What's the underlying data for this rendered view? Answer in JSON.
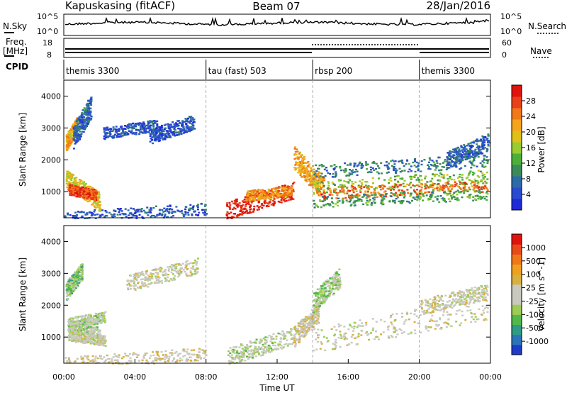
{
  "header": {
    "radar": "Kapuskasing (fitACF)",
    "beam": "Beam 07",
    "date": "28/Jan/2016"
  },
  "panels": {
    "nsky_label": "N.Sky",
    "nsearch_label": "N.Search",
    "freq_label_line1": "Freq.",
    "freq_label_line2": "[MHz]",
    "nave_label": "Nave",
    "cpid_label": "CPID",
    "left_top_tick_top": "10^5",
    "left_top_tick_bottom": "10^0",
    "right_top_tick_top": "10^5",
    "right_top_tick_bottom": "10^0",
    "freq_tick_top": "18",
    "freq_tick_bottom": "8",
    "nave_tick_top": "60",
    "nave_tick_bottom": "0"
  },
  "cpid_segments": [
    {
      "label": "themis 3300",
      "start_h": 0,
      "end_h": 8
    },
    {
      "label": "tau (fast) 503",
      "start_h": 8,
      "end_h": 14
    },
    {
      "label": "rbsp 200",
      "start_h": 14,
      "end_h": 20
    },
    {
      "label": "themis 3300",
      "start_h": 20,
      "end_h": 24
    }
  ],
  "power_colorbar": {
    "label": "Power [dB]",
    "ticks": [
      "4",
      "8",
      "12",
      "16",
      "20",
      "24",
      "28"
    ],
    "colors": [
      "#1f2bd6",
      "#2a4ad0",
      "#2d6aa8",
      "#3a8a5a",
      "#4caf3a",
      "#9acb2f",
      "#e0c018",
      "#f5a41c",
      "#f07818",
      "#e8401a",
      "#e0140c"
    ]
  },
  "velocity_colorbar": {
    "label": "Velocity [m s^-1]",
    "ticks": [
      "1000",
      "500",
      "100",
      "25",
      "-25",
      "-100",
      "-500",
      "-1000"
    ],
    "colors": [
      "#1e3cc8",
      "#2c74b8",
      "#2f9a86",
      "#52b84a",
      "#9ccc55",
      "#c9c9c0",
      "#c9c9c0",
      "#d8b040",
      "#f0a020",
      "#f07818",
      "#e84a1a",
      "#e0140c"
    ]
  },
  "chart_data": {
    "type": "heatmap",
    "title": "Kapuskasing (fitACF)  Beam 07  28/Jan/2016",
    "xlabel": "Time UT",
    "ylabel": "Slant Range [km]",
    "x_ticks": [
      "00:00",
      "04:00",
      "08:00",
      "12:00",
      "16:00",
      "20:00",
      "00:00"
    ],
    "y_ticks": [
      "1000",
      "2000",
      "3000",
      "4000"
    ],
    "xlim_hours": [
      0,
      24
    ],
    "ylim_km": [
      180,
      4500
    ],
    "panels": [
      {
        "name": "Power",
        "units": "dB",
        "range": [
          0,
          30
        ],
        "blobs": [
          {
            "t0": 0.1,
            "t1": 0.7,
            "r0": 2550,
            "r1": 3100,
            "v": 20
          },
          {
            "t0": 0.5,
            "t1": 1.5,
            "r0": 2700,
            "r1": 3700,
            "v": 6
          },
          {
            "t0": 0.1,
            "t1": 2.0,
            "r0": 1400,
            "r1": 700,
            "v": 18
          },
          {
            "t0": 0.2,
            "t1": 1.8,
            "r0": 1100,
            "r1": 900,
            "v": 26
          },
          {
            "t0": 4.8,
            "t1": 7.3,
            "r0": 2750,
            "r1": 3200,
            "v": 5
          },
          {
            "t0": 2.2,
            "t1": 5.2,
            "r0": 2850,
            "r1": 3100,
            "v": 5
          },
          {
            "t0": 9.1,
            "t1": 12.9,
            "r0": 420,
            "r1": 1050,
            "v": 28
          },
          {
            "t0": 10.2,
            "t1": 12.8,
            "r0": 880,
            "r1": 1050,
            "v": 22
          },
          {
            "t0": 12.9,
            "t1": 14.6,
            "r0": 2100,
            "r1": 1100,
            "v": 20
          },
          {
            "t0": 14.0,
            "t1": 23.8,
            "r0": 1650,
            "r1": 2000,
            "v": 8
          },
          {
            "t0": 14.0,
            "t1": 23.8,
            "r0": 1150,
            "r1": 1500,
            "v": 14
          },
          {
            "t0": 14.2,
            "t1": 23.8,
            "r0": 950,
            "r1": 1200,
            "v": 24
          },
          {
            "t0": 14.0,
            "t1": 23.8,
            "r0": 700,
            "r1": 950,
            "v": 11
          },
          {
            "t0": 21.5,
            "t1": 23.9,
            "r0": 2000,
            "r1": 2600,
            "v": 6
          },
          {
            "t0": 0.0,
            "t1": 8.0,
            "r0": 200,
            "r1": 480,
            "v": 5
          }
        ]
      },
      {
        "name": "Velocity",
        "units": "m s^-1",
        "range": [
          -1000,
          1000
        ],
        "blobs": [
          {
            "t0": 0.1,
            "t1": 1.0,
            "r0": 2450,
            "r1": 3100,
            "v": -300
          },
          {
            "t0": 0.2,
            "t1": 2.0,
            "r0": 1350,
            "r1": 1150,
            "v": -150
          },
          {
            "t0": 0.2,
            "t1": 2.3,
            "r0": 1050,
            "r1": 900,
            "v": 0
          },
          {
            "t0": 0.2,
            "t1": 2.3,
            "r0": 1450,
            "r1": 1650,
            "v": -150
          },
          {
            "t0": 3.5,
            "t1": 7.5,
            "r0": 2700,
            "r1": 3250,
            "v": 0
          },
          {
            "t0": 0.0,
            "t1": 8.0,
            "r0": 200,
            "r1": 500,
            "v": 80
          },
          {
            "t0": 9.2,
            "t1": 12.9,
            "r0": 400,
            "r1": 1050,
            "v": -110
          },
          {
            "t0": 12.9,
            "t1": 14.3,
            "r0": 1000,
            "r1": 1800,
            "v": 60
          },
          {
            "t0": 14.0,
            "t1": 23.8,
            "r0": 900,
            "r1": 1950,
            "v": 0
          },
          {
            "t0": 20.0,
            "t1": 23.8,
            "r0": 1950,
            "r1": 2450,
            "v": 0
          },
          {
            "t0": 14.0,
            "t1": 15.5,
            "r0": 2100,
            "r1": 2900,
            "v": -200
          }
        ]
      }
    ]
  }
}
